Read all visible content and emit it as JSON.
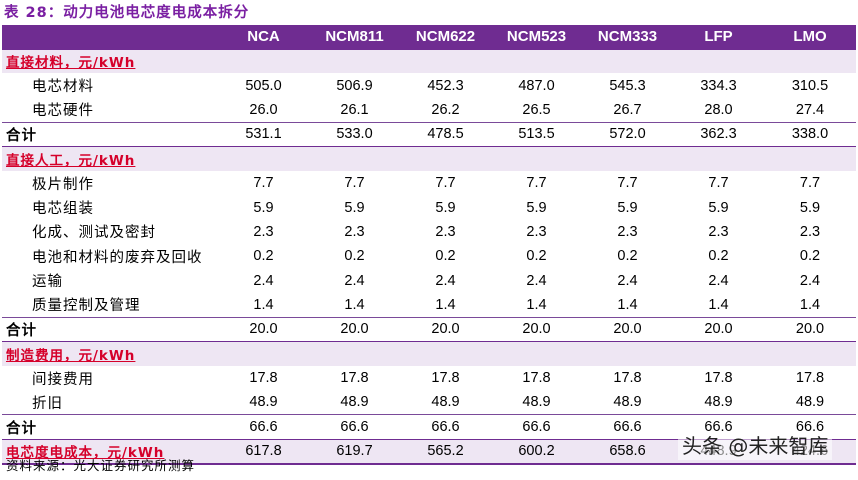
{
  "title": "表 28：动力电池电芯度电成本拆分",
  "columns": [
    "NCA",
    "NCM811",
    "NCM622",
    "NCM523",
    "NCM333",
    "LFP",
    "LMO"
  ],
  "rows": [
    {
      "type": "section",
      "label": "直接材料，元/kWh",
      "values": []
    },
    {
      "type": "item",
      "label": "电芯材料",
      "values": [
        "505.0",
        "506.9",
        "452.3",
        "487.0",
        "545.3",
        "334.3",
        "310.5"
      ]
    },
    {
      "type": "item",
      "label": "电芯硬件",
      "values": [
        "26.0",
        "26.1",
        "26.2",
        "26.5",
        "26.7",
        "28.0",
        "27.4"
      ]
    },
    {
      "type": "total",
      "label": "合计",
      "values": [
        "531.1",
        "533.0",
        "478.5",
        "513.5",
        "572.0",
        "362.3",
        "338.0"
      ]
    },
    {
      "type": "section",
      "label": "直接人工，元/kWh",
      "values": []
    },
    {
      "type": "item",
      "label": "极片制作",
      "values": [
        "7.7",
        "7.7",
        "7.7",
        "7.7",
        "7.7",
        "7.7",
        "7.7"
      ]
    },
    {
      "type": "item",
      "label": "电芯组装",
      "values": [
        "5.9",
        "5.9",
        "5.9",
        "5.9",
        "5.9",
        "5.9",
        "5.9"
      ]
    },
    {
      "type": "item",
      "label": "化成、测试及密封",
      "values": [
        "2.3",
        "2.3",
        "2.3",
        "2.3",
        "2.3",
        "2.3",
        "2.3"
      ]
    },
    {
      "type": "item",
      "label": "电池和材料的废弃及回收",
      "values": [
        "0.2",
        "0.2",
        "0.2",
        "0.2",
        "0.2",
        "0.2",
        "0.2"
      ]
    },
    {
      "type": "item",
      "label": "运输",
      "values": [
        "2.4",
        "2.4",
        "2.4",
        "2.4",
        "2.4",
        "2.4",
        "2.4"
      ]
    },
    {
      "type": "item",
      "label": "质量控制及管理",
      "values": [
        "1.4",
        "1.4",
        "1.4",
        "1.4",
        "1.4",
        "1.4",
        "1.4"
      ]
    },
    {
      "type": "total",
      "label": "合计",
      "values": [
        "20.0",
        "20.0",
        "20.0",
        "20.0",
        "20.0",
        "20.0",
        "20.0"
      ]
    },
    {
      "type": "section",
      "label": "制造费用，元/kWh",
      "values": []
    },
    {
      "type": "item",
      "label": "间接费用",
      "values": [
        "17.8",
        "17.8",
        "17.8",
        "17.8",
        "17.8",
        "17.8",
        "17.8"
      ]
    },
    {
      "type": "item",
      "label": "折旧",
      "values": [
        "48.9",
        "48.9",
        "48.9",
        "48.9",
        "48.9",
        "48.9",
        "48.9"
      ]
    },
    {
      "type": "total",
      "label": "合计",
      "values": [
        "66.6",
        "66.6",
        "66.6",
        "66.6",
        "66.6",
        "66.6",
        "66.6"
      ]
    },
    {
      "type": "grand",
      "label": "电芯度电成本，元/kWh",
      "values": [
        "617.8",
        "619.7",
        "565.2",
        "600.2",
        "658.6",
        "448.9",
        "424.6"
      ]
    }
  ],
  "source": "资料来源：光大证券研究所测算",
  "watermark": "头条 @未来智库"
}
